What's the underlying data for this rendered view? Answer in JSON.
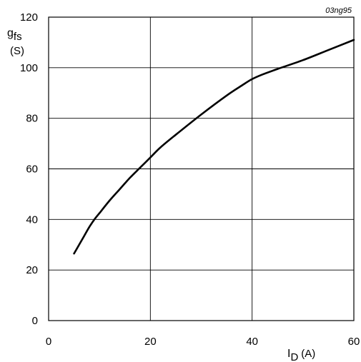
{
  "chart_data": {
    "type": "line",
    "reference": "03ng95",
    "ylabel": {
      "symbol": "g",
      "sub": "fs",
      "unit": "(S)"
    },
    "xlabel": {
      "symbol": "I",
      "sub": "D",
      "unit": "(A)"
    },
    "xlim": [
      0,
      60
    ],
    "ylim": [
      0,
      120
    ],
    "xticks": [
      0,
      20,
      40,
      60
    ],
    "yticks": [
      0,
      20,
      40,
      60,
      80,
      100,
      120
    ],
    "grid": true,
    "series": [
      {
        "x": [
          5,
          6,
          7,
          8,
          9,
          10,
          12,
          14,
          16,
          18,
          20,
          22,
          25,
          30,
          35,
          38,
          40,
          42,
          45,
          50,
          55,
          60
        ],
        "y": [
          26.5,
          30,
          33.5,
          37,
          40,
          42.5,
          47.5,
          52,
          56.5,
          60.5,
          64.5,
          68.5,
          73.5,
          81.5,
          89,
          93,
          95.5,
          97.3,
          99.5,
          103,
          107,
          111
        ]
      }
    ]
  }
}
